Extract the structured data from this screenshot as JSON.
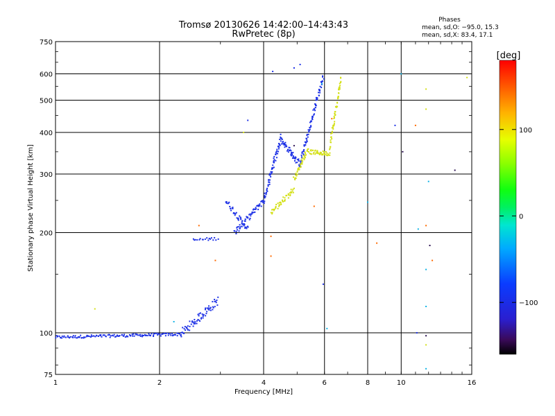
{
  "chart_data": {
    "type": "scatter",
    "title": "Tromsø 20130626 14:42:00–14:43:43",
    "subtitle": "RwPretec (8p)",
    "stats": {
      "header": "Phases",
      "line_o": "mean, sd,O: −95.0, 15.3",
      "line_x": "mean, sd,X:  83.4, 17.1"
    },
    "xlabel": "Frequency [MHz]",
    "ylabel": "Stationary phase Virtual Height [km]",
    "x_scale": "log",
    "y_scale": "log",
    "xlim": [
      1,
      16
    ],
    "ylim": [
      75,
      750
    ],
    "x_ticks": [
      1,
      2,
      4,
      6,
      8,
      10,
      16
    ],
    "x_tick_labels": [
      "1",
      "2",
      "4",
      "6",
      "8",
      "10",
      "16"
    ],
    "y_ticks": [
      75,
      100,
      200,
      300,
      400,
      500,
      600,
      750
    ],
    "y_tick_labels": [
      "75",
      "100",
      "200",
      "300",
      "400",
      "500",
      "600",
      "750"
    ],
    "grid": true,
    "colorbar": {
      "label": "[deg]",
      "min": -160,
      "max": 180,
      "ticks": [
        -100,
        0,
        100
      ],
      "tick_labels": [
        "−100",
        "0",
        "100"
      ]
    },
    "series": [
      {
        "mode": "O",
        "color": "#1e32e6",
        "segments": [
          {
            "f_start": 1.0,
            "f_end": 2.3,
            "h_start": 97,
            "h_end": 99,
            "n": 140,
            "spread": 0.02
          },
          {
            "f_start": 2.3,
            "f_end": 2.95,
            "h_start": 99,
            "h_end": 125,
            "n": 70,
            "spread": 0.06
          },
          {
            "f_start": 2.5,
            "f_end": 2.95,
            "h_start": 190,
            "h_end": 192,
            "n": 18,
            "spread": 0.02
          },
          {
            "f_start": 3.1,
            "f_end": 3.6,
            "h_start": 250,
            "h_end": 205,
            "n": 40,
            "spread": 0.04
          },
          {
            "f_start": 3.3,
            "f_end": 4.0,
            "h_start": 200,
            "h_end": 250,
            "n": 60,
            "spread": 0.04
          },
          {
            "f_start": 4.0,
            "f_end": 4.5,
            "h_start": 250,
            "h_end": 390,
            "n": 70,
            "spread": 0.05
          },
          {
            "f_start": 4.5,
            "f_end": 5.1,
            "h_start": 380,
            "h_end": 320,
            "n": 60,
            "spread": 0.04
          },
          {
            "f_start": 5.1,
            "f_end": 5.95,
            "h_start": 320,
            "h_end": 590,
            "n": 90,
            "spread": 0.04
          }
        ],
        "points": [
          {
            "x": 3.6,
            "y": 435
          },
          {
            "x": 4.25,
            "y": 610
          },
          {
            "x": 4.9,
            "y": 625
          },
          {
            "x": 5.1,
            "y": 640
          },
          {
            "x": 5.95,
            "y": 140
          },
          {
            "x": 9.6,
            "y": 420
          },
          {
            "x": 11.1,
            "y": 100
          }
        ]
      },
      {
        "mode": "X",
        "color": "#d4e018",
        "segments": [
          {
            "f_start": 4.2,
            "f_end": 4.9,
            "h_start": 230,
            "h_end": 270,
            "n": 45,
            "spread": 0.04
          },
          {
            "f_start": 4.9,
            "f_end": 5.4,
            "h_start": 290,
            "h_end": 360,
            "n": 45,
            "spread": 0.03
          },
          {
            "f_start": 5.4,
            "f_end": 6.2,
            "h_start": 350,
            "h_end": 345,
            "n": 45,
            "spread": 0.03
          },
          {
            "f_start": 6.2,
            "f_end": 6.7,
            "h_start": 360,
            "h_end": 580,
            "n": 60,
            "spread": 0.04
          }
        ],
        "points": [
          {
            "x": 1.3,
            "y": 118
          },
          {
            "x": 3.5,
            "y": 400
          },
          {
            "x": 11.8,
            "y": 540
          },
          {
            "x": 11.8,
            "y": 470
          },
          {
            "x": 11.8,
            "y": 92
          },
          {
            "x": 15.5,
            "y": 585
          }
        ]
      },
      {
        "mode": "scatter-other",
        "color": "#ff6a00",
        "points": [
          {
            "x": 2.6,
            "y": 210
          },
          {
            "x": 2.9,
            "y": 165
          },
          {
            "x": 4.2,
            "y": 195
          },
          {
            "x": 4.2,
            "y": 170
          },
          {
            "x": 5.6,
            "y": 240
          },
          {
            "x": 6.3,
            "y": 440
          },
          {
            "x": 8.5,
            "y": 186
          },
          {
            "x": 11.0,
            "y": 420
          },
          {
            "x": 11.8,
            "y": 210
          },
          {
            "x": 12.3,
            "y": 165
          }
        ]
      },
      {
        "mode": "scatter-cyan",
        "color": "#10b4e6",
        "points": [
          {
            "x": 2.2,
            "y": 108
          },
          {
            "x": 5.9,
            "y": 560
          },
          {
            "x": 6.1,
            "y": 103
          },
          {
            "x": 8.0,
            "y": 247
          },
          {
            "x": 10.0,
            "y": 600
          },
          {
            "x": 11.2,
            "y": 205
          },
          {
            "x": 11.8,
            "y": 155
          },
          {
            "x": 11.8,
            "y": 120
          },
          {
            "x": 12.0,
            "y": 285
          },
          {
            "x": 11.8,
            "y": 78
          }
        ]
      },
      {
        "mode": "scatter-dark",
        "color": "#2a1050",
        "points": [
          {
            "x": 4.9,
            "y": 365
          },
          {
            "x": 10.1,
            "y": 350
          },
          {
            "x": 11.8,
            "y": 98
          },
          {
            "x": 12.1,
            "y": 183
          },
          {
            "x": 14.3,
            "y": 308
          }
        ]
      }
    ]
  }
}
